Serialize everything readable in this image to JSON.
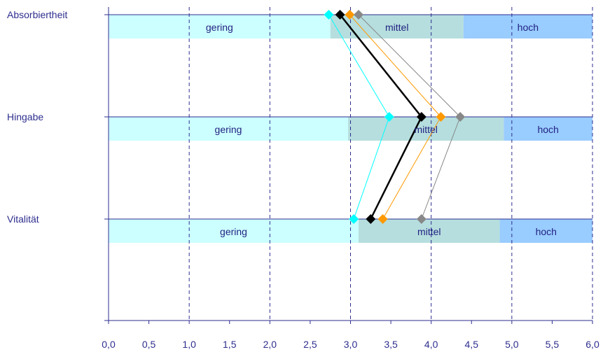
{
  "chart_data": {
    "type": "line",
    "title": "",
    "xlabel": "",
    "ylabel": "",
    "xlim": [
      0,
      6
    ],
    "x_ticks": [
      "0,0",
      "0,5",
      "1,0",
      "1,5",
      "2,0",
      "2,5",
      "3,0",
      "3,5",
      "4,0",
      "4,5",
      "5,0",
      "5,5",
      "6,0"
    ],
    "categories": [
      "Absorbiertheit",
      "Hingabe",
      "Vitalität"
    ],
    "grid": "vertical dashed",
    "legend": "none",
    "bands": [
      {
        "category": "Absorbiertheit",
        "ranges": [
          {
            "label": "gering",
            "from": 0,
            "to": 2.75,
            "color": "#ccffff"
          },
          {
            "label": "mittel",
            "from": 2.75,
            "to": 4.4,
            "color": "#b6dede"
          },
          {
            "label": "hoch",
            "from": 4.4,
            "to": 6.0,
            "color": "#99ccff"
          }
        ]
      },
      {
        "category": "Hingabe",
        "ranges": [
          {
            "label": "gering",
            "from": 0,
            "to": 2.97,
            "color": "#ccffff"
          },
          {
            "label": "mittel",
            "from": 2.97,
            "to": 4.9,
            "color": "#b6dede"
          },
          {
            "label": "hoch",
            "from": 4.9,
            "to": 6.0,
            "color": "#99ccff"
          }
        ]
      },
      {
        "category": "Vitalität",
        "ranges": [
          {
            "label": "gering",
            "from": 0,
            "to": 3.1,
            "color": "#ccffff"
          },
          {
            "label": "mittel",
            "from": 3.1,
            "to": 4.85,
            "color": "#b6dede"
          },
          {
            "label": "hoch",
            "from": 4.85,
            "to": 6.0,
            "color": "#99ccff"
          }
        ]
      }
    ],
    "series": [
      {
        "color": "#00ffff",
        "width": 1,
        "values": [
          2.73,
          3.48,
          3.04
        ]
      },
      {
        "color": "#ff9900",
        "width": 1,
        "values": [
          2.99,
          4.12,
          3.4
        ]
      },
      {
        "color": "#888888",
        "width": 1,
        "values": [
          3.1,
          4.36,
          3.88
        ]
      },
      {
        "color": "#000000",
        "width": 2.5,
        "values": [
          2.87,
          3.88,
          3.25
        ]
      }
    ]
  }
}
